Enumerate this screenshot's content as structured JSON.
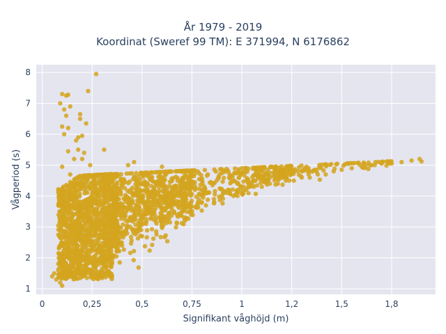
{
  "chart_data": {
    "type": "scatter",
    "title": "År 1979 - 2019",
    "subtitle": "Koordinat (Sweref 99 TM): E 371994, N 6176862",
    "xlabel": "Signifikant våghöjd (m)",
    "ylabel": "Vågperiod (s)",
    "xlim": [
      -0.03,
      1.97
    ],
    "ylim": [
      0.82,
      8.25
    ],
    "xticks": [
      0,
      0.25,
      0.5,
      0.75,
      1,
      1.25,
      1.5,
      1.75
    ],
    "xtick_labels": [
      "0",
      "0,25",
      "0,5",
      "0,75",
      "1",
      "1,2",
      "1,5",
      "1,8"
    ],
    "yticks": [
      1,
      2,
      3,
      4,
      5,
      6,
      7,
      8
    ],
    "ytick_labels": [
      "1",
      "2",
      "3",
      "4",
      "5",
      "6",
      "7",
      "8"
    ],
    "grid": true,
    "marker_color": "#d4a51f",
    "background_color": "#e5e5f0",
    "series": [
      {
        "values_description_x_y_pairs": true,
        "points": [
          [
            0.05,
            1.4
          ],
          [
            0.06,
            1.5
          ],
          [
            0.07,
            1.3
          ],
          [
            0.08,
            1.6
          ],
          [
            0.09,
            1.2
          ],
          [
            0.1,
            1.1
          ],
          [
            0.1,
            1.8
          ],
          [
            0.11,
            2.2
          ],
          [
            0.12,
            2.6
          ],
          [
            0.13,
            3.0
          ],
          [
            0.14,
            1.4
          ],
          [
            0.15,
            2.0
          ],
          [
            0.16,
            2.5
          ],
          [
            0.17,
            3.2
          ],
          [
            0.18,
            3.6
          ],
          [
            0.19,
            1.7
          ],
          [
            0.2,
            2.3
          ],
          [
            0.21,
            2.9
          ],
          [
            0.22,
            3.4
          ],
          [
            0.23,
            3.8
          ],
          [
            0.24,
            1.9
          ],
          [
            0.25,
            2.4
          ],
          [
            0.26,
            3.0
          ],
          [
            0.27,
            3.5
          ],
          [
            0.28,
            4.0
          ],
          [
            0.3,
            2.1
          ],
          [
            0.32,
            2.6
          ],
          [
            0.34,
            3.1
          ],
          [
            0.36,
            3.5
          ],
          [
            0.38,
            3.9
          ],
          [
            0.4,
            2.4
          ],
          [
            0.42,
            2.9
          ],
          [
            0.44,
            3.3
          ],
          [
            0.46,
            3.6
          ],
          [
            0.48,
            4.1
          ],
          [
            0.5,
            2.7
          ],
          [
            0.52,
            3.1
          ],
          [
            0.55,
            3.4
          ],
          [
            0.58,
            3.7
          ],
          [
            0.6,
            3.0
          ],
          [
            0.63,
            3.3
          ],
          [
            0.66,
            3.5
          ],
          [
            0.7,
            3.7
          ],
          [
            0.74,
            3.5
          ],
          [
            0.78,
            3.8
          ],
          [
            0.82,
            3.7
          ],
          [
            0.86,
            3.9
          ],
          [
            0.9,
            4.0
          ],
          [
            0.94,
            4.1
          ],
          [
            0.98,
            4.2
          ],
          [
            1.02,
            4.2
          ],
          [
            1.06,
            4.3
          ],
          [
            1.1,
            4.3
          ],
          [
            1.14,
            4.4
          ],
          [
            1.18,
            4.4
          ],
          [
            1.22,
            4.5
          ],
          [
            1.26,
            4.5
          ],
          [
            1.3,
            4.6
          ],
          [
            1.34,
            4.6
          ],
          [
            1.38,
            4.7
          ],
          [
            1.42,
            4.7
          ],
          [
            1.46,
            4.8
          ],
          [
            1.5,
            4.85
          ],
          [
            1.55,
            4.9
          ],
          [
            1.6,
            4.95
          ],
          [
            1.65,
            5.0
          ],
          [
            1.7,
            5.05
          ],
          [
            1.75,
            5.05
          ],
          [
            1.8,
            5.1
          ],
          [
            1.85,
            5.15
          ],
          [
            1.89,
            5.2
          ],
          [
            1.9,
            5.12
          ],
          [
            0.1,
            7.3
          ],
          [
            0.12,
            7.25
          ],
          [
            0.13,
            7.28
          ],
          [
            0.09,
            7.0
          ],
          [
            0.11,
            6.8
          ],
          [
            0.14,
            6.9
          ],
          [
            0.12,
            6.6
          ],
          [
            0.1,
            6.25
          ],
          [
            0.13,
            6.2
          ],
          [
            0.11,
            6.0
          ],
          [
            0.27,
            7.95
          ],
          [
            0.23,
            7.4
          ],
          [
            0.19,
            6.65
          ],
          [
            0.22,
            6.35
          ],
          [
            0.19,
            6.5
          ],
          [
            0.18,
            5.9
          ],
          [
            0.2,
            5.95
          ],
          [
            0.17,
            5.8
          ],
          [
            0.21,
            5.4
          ],
          [
            0.18,
            5.5
          ],
          [
            0.13,
            5.45
          ],
          [
            0.16,
            5.2
          ],
          [
            0.2,
            5.2
          ],
          [
            0.31,
            5.5
          ],
          [
            0.46,
            5.1
          ],
          [
            0.43,
            5.0
          ],
          [
            0.6,
            4.95
          ],
          [
            0.24,
            5.0
          ],
          [
            0.1,
            4.95
          ],
          [
            0.14,
            4.7
          ]
        ]
      }
    ]
  }
}
